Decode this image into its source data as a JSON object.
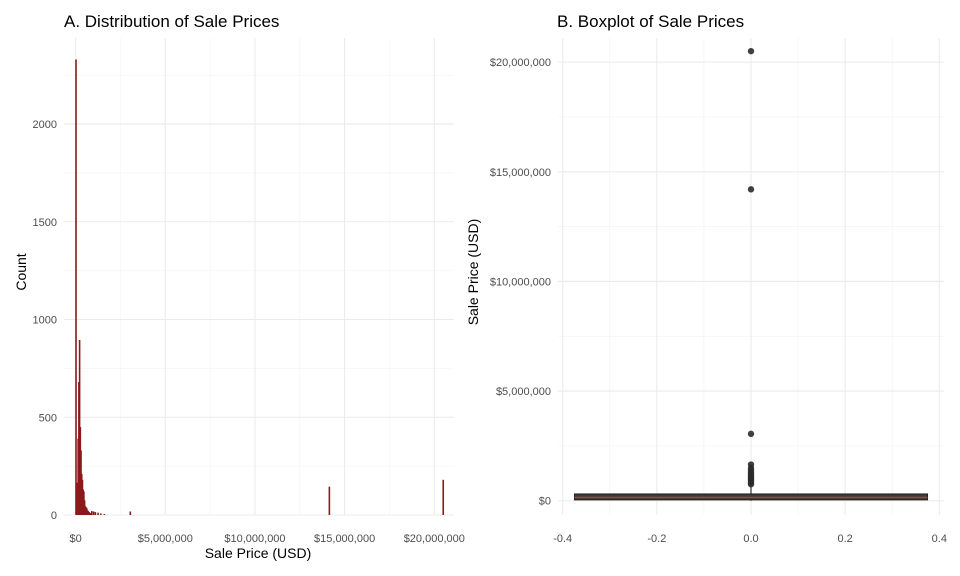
{
  "chart_data": [
    {
      "type": "bar",
      "subtype": "histogram",
      "title": "A. Distribution of Sale Prices",
      "xlabel": "Sale Price (USD)",
      "ylabel": "Count",
      "x_tick_labels": [
        "$0",
        "$5,000,000",
        "$10,000,000",
        "$15,000,000",
        "$20,000,000"
      ],
      "x_ticks": [
        0,
        5000000,
        10000000,
        15000000,
        20000000
      ],
      "y_tick_labels": [
        "0",
        "500",
        "1000",
        "1500",
        "2000"
      ],
      "y_ticks": [
        0,
        500,
        1000,
        1500,
        2000
      ],
      "xlim": [
        -650000,
        21100000
      ],
      "ylim": [
        0,
        2440
      ],
      "grid": true,
      "bar_color": "#8b1a1a",
      "bins": [
        {
          "x": 20000,
          "count": 2330
        },
        {
          "x": 60000,
          "count": 165
        },
        {
          "x": 100000,
          "count": 120
        },
        {
          "x": 140000,
          "count": 390
        },
        {
          "x": 180000,
          "count": 680
        },
        {
          "x": 220000,
          "count": 895
        },
        {
          "x": 260000,
          "count": 450
        },
        {
          "x": 300000,
          "count": 330
        },
        {
          "x": 340000,
          "count": 210
        },
        {
          "x": 380000,
          "count": 180
        },
        {
          "x": 420000,
          "count": 130
        },
        {
          "x": 460000,
          "count": 120
        },
        {
          "x": 500000,
          "count": 75
        },
        {
          "x": 540000,
          "count": 45
        },
        {
          "x": 580000,
          "count": 40
        },
        {
          "x": 620000,
          "count": 35
        },
        {
          "x": 660000,
          "count": 25
        },
        {
          "x": 700000,
          "count": 20
        },
        {
          "x": 760000,
          "count": 15
        },
        {
          "x": 820000,
          "count": 10
        },
        {
          "x": 900000,
          "count": 20
        },
        {
          "x": 1000000,
          "count": 18
        },
        {
          "x": 1100000,
          "count": 15
        },
        {
          "x": 1250000,
          "count": 12
        },
        {
          "x": 1400000,
          "count": 8
        },
        {
          "x": 1600000,
          "count": 5
        },
        {
          "x": 3050000,
          "count": 18
        },
        {
          "x": 14150000,
          "count": 145
        },
        {
          "x": 20500000,
          "count": 180
        }
      ]
    },
    {
      "type": "boxplot",
      "title": "B. Boxplot of Sale Prices",
      "xlabel": "",
      "ylabel": "Sale Price (USD)",
      "x_tick_labels": [
        "-0.4",
        "-0.2",
        "0.0",
        "0.2",
        "0.4"
      ],
      "x_ticks": [
        -0.4,
        -0.2,
        0.0,
        0.2,
        0.4
      ],
      "y_tick_labels": [
        "$0",
        "$5,000,000",
        "$10,000,000",
        "$15,000,000",
        "$20,000,000"
      ],
      "y_ticks": [
        0,
        5000000,
        10000000,
        15000000,
        20000000
      ],
      "xlim": [
        -0.41,
        0.41
      ],
      "ylim": [
        -650000,
        21100000
      ],
      "grid": true,
      "box": {
        "x_center": 0.0,
        "x_min": -0.375,
        "x_max": 0.375,
        "q1": 40000,
        "median": 150000,
        "q3": 310000,
        "whisker_low": 0,
        "whisker_high": 680000
      },
      "box_fill_color": "#3a3a3a",
      "median_color": "#c0392b",
      "outliers": [
        750000,
        820000,
        900000,
        980000,
        1050000,
        1120000,
        1200000,
        1280000,
        1380000,
        1500000,
        1650000,
        3050000,
        14200000,
        20500000
      ]
    }
  ]
}
